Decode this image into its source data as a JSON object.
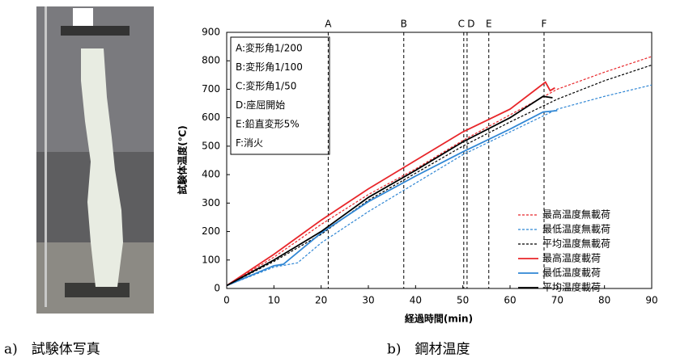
{
  "captions": [
    "a)　試験体写真",
    "b)　鋼材温度"
  ],
  "chart_data": {
    "type": "line",
    "x_label": "経過時間(min)",
    "y_label": "試験体温度(℃)",
    "xlim": [
      0,
      90
    ],
    "xticks": [
      0,
      10,
      20,
      30,
      40,
      50,
      60,
      70,
      80,
      90
    ],
    "ylim": [
      0,
      900
    ],
    "yticks": [
      0,
      100,
      200,
      300,
      400,
      500,
      600,
      700,
      800,
      900
    ],
    "markers": [
      {
        "label": "A",
        "x": 21.5
      },
      {
        "label": "B",
        "x": 37.5
      },
      {
        "label": "C",
        "x": 50.2
      },
      {
        "label": "D",
        "x": 50.9
      },
      {
        "label": "E",
        "x": 55.5
      },
      {
        "label": "F",
        "x": 67.2
      }
    ],
    "notes": [
      "A:変形角1/200",
      "B:変形角1/100",
      "C:変形角1/50",
      "D:座屈開始",
      "E:鉛直変形5%",
      "F:消火"
    ],
    "series": [
      {
        "name": "最高温度無載荷",
        "color": "#e8262a",
        "dashed": true,
        "x": [
          0,
          10,
          20,
          30,
          40,
          50,
          60,
          70,
          80,
          90
        ],
        "values": [
          10,
          110,
          225,
          330,
          420,
          520,
          610,
          700,
          760,
          815
        ]
      },
      {
        "name": "最低温度無載荷",
        "color": "#2f86d4",
        "dashed": true,
        "x": [
          0,
          10,
          15,
          20,
          30,
          40,
          50,
          60,
          70,
          80,
          90
        ],
        "values": [
          10,
          75,
          90,
          160,
          270,
          370,
          470,
          550,
          630,
          675,
          715
        ]
      },
      {
        "name": "平均温度無載荷",
        "color": "#000000",
        "dashed": true,
        "x": [
          0,
          10,
          20,
          30,
          40,
          50,
          60,
          70,
          80,
          90
        ],
        "values": [
          10,
          95,
          190,
          310,
          405,
          500,
          585,
          665,
          730,
          785
        ]
      },
      {
        "name": "最高温度載荷",
        "color": "#e8262a",
        "dashed": false,
        "x": [
          0,
          10,
          20,
          30,
          40,
          50,
          60,
          67.5,
          68.5,
          69.5
        ],
        "values": [
          10,
          120,
          240,
          350,
          450,
          550,
          630,
          725,
          695,
          705
        ]
      },
      {
        "name": "最低温度載荷",
        "color": "#2f86d4",
        "dashed": false,
        "x": [
          0,
          10,
          12,
          20,
          30,
          40,
          50,
          60,
          67,
          70
        ],
        "values": [
          10,
          80,
          85,
          195,
          305,
          395,
          480,
          560,
          620,
          625
        ]
      },
      {
        "name": "平均温度載荷",
        "color": "#000000",
        "dashed": false,
        "x": [
          0,
          10,
          20,
          30,
          40,
          50,
          60,
          67,
          69
        ],
        "values": [
          10,
          100,
          200,
          320,
          415,
          515,
          600,
          675,
          670
        ]
      }
    ]
  }
}
